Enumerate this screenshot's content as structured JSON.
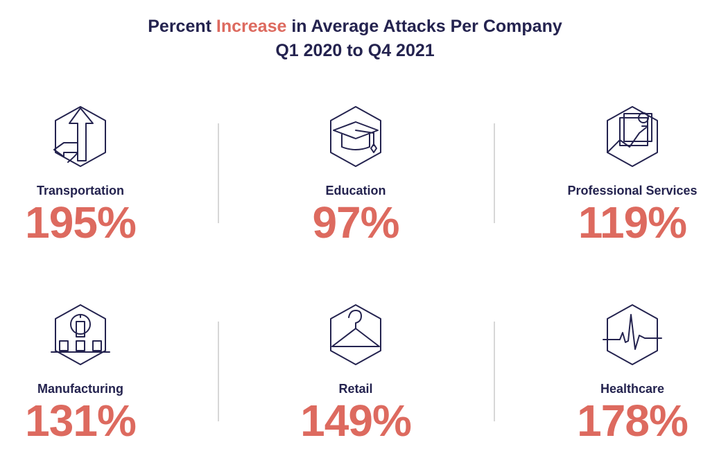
{
  "header": {
    "title_pre": "Percent ",
    "title_highlight": "Increase",
    "title_post": " in Average Attacks Per Company",
    "subtitle": "Q1 2020 to Q4 2021"
  },
  "colors": {
    "accent": "#dd6a5f",
    "navy": "#24234f",
    "divider": "#d7d7d7"
  },
  "chart_data": {
    "type": "table",
    "title": "Percent Increase in Average Attacks Per Company",
    "subtitle": "Q1 2020 to Q4 2021",
    "categories": [
      "Transportation",
      "Education",
      "Professional Services",
      "Manufacturing",
      "Retail",
      "Healthcare"
    ],
    "values": [
      195,
      97,
      119,
      131,
      149,
      178
    ],
    "unit": "%",
    "items": [
      {
        "label": "Transportation",
        "value": 195,
        "display": "195%",
        "icon": "arrow-up-icon"
      },
      {
        "label": "Education",
        "value": 97,
        "display": "97%",
        "icon": "graduation-cap-icon"
      },
      {
        "label": "Professional Services",
        "value": 119,
        "display": "119%",
        "icon": "growth-chart-icon"
      },
      {
        "label": "Manufacturing",
        "value": 131,
        "display": "131%",
        "icon": "factory-lightbulb-icon"
      },
      {
        "label": "Retail",
        "value": 149,
        "display": "149%",
        "icon": "hanger-icon"
      },
      {
        "label": "Healthcare",
        "value": 178,
        "display": "178%",
        "icon": "heartbeat-icon"
      }
    ]
  }
}
